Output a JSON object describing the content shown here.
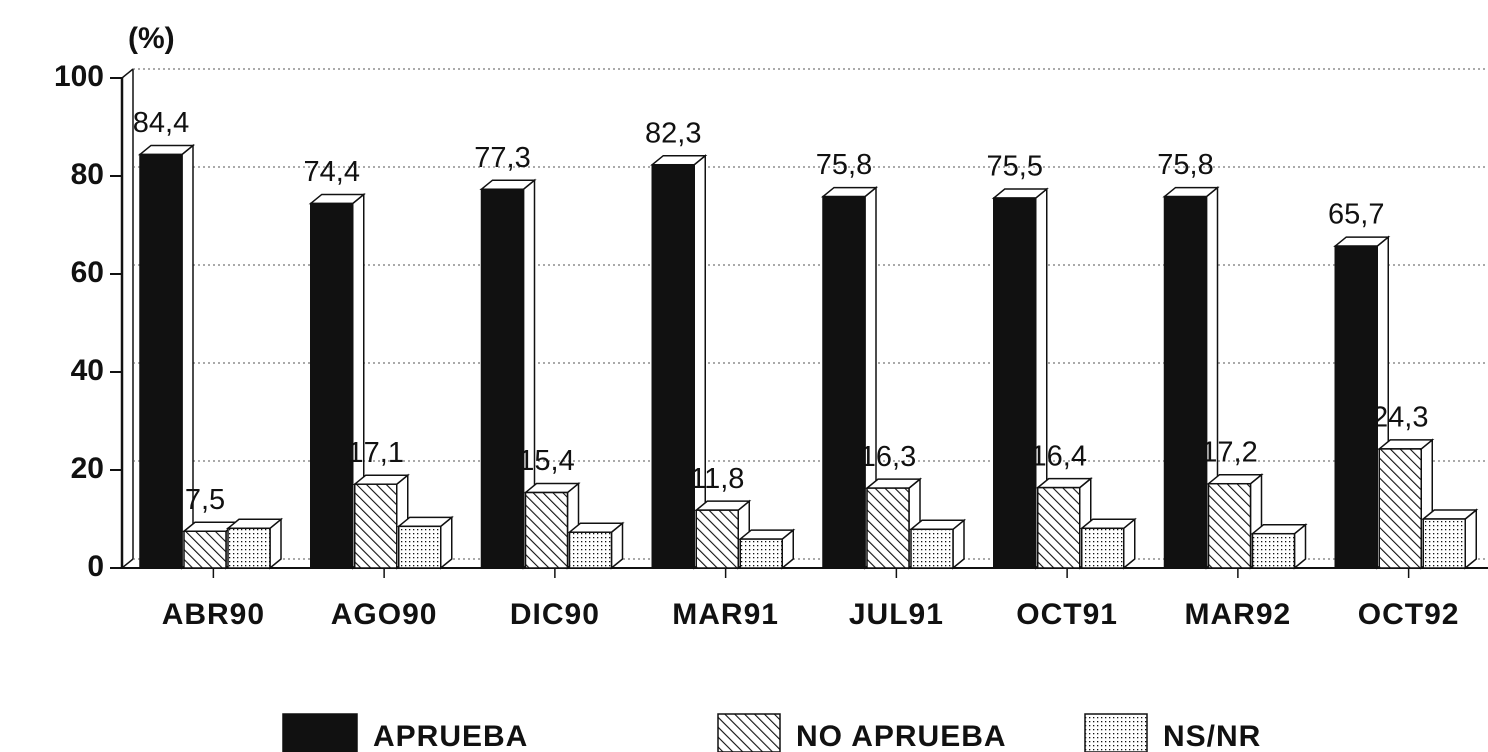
{
  "chart_data": {
    "type": "bar3d",
    "y_label": "(%)",
    "categories": [
      "ABR90",
      "AGO90",
      "DIC90",
      "MAR91",
      "JUL91",
      "OCT91",
      "MAR92",
      "OCT92"
    ],
    "series": [
      {
        "name": "APRUEBA",
        "color": "#111111",
        "fill": "solid",
        "values": [
          84.4,
          74.4,
          77.3,
          82.3,
          75.8,
          75.5,
          75.8,
          65.7
        ],
        "value_labels": [
          "84,4",
          "74,4",
          "77,3",
          "82,3",
          "75,8",
          "75,5",
          "75,8",
          "65,7"
        ]
      },
      {
        "name": "NO APRUEBA",
        "color": "#111111",
        "fill": "hatch",
        "values": [
          7.5,
          17.1,
          15.4,
          11.8,
          16.3,
          16.4,
          17.2,
          24.3
        ],
        "value_labels": [
          "7,5",
          "17,1",
          "15,4",
          "11,8",
          "16,3",
          "16,4",
          "17,2",
          "24,3"
        ]
      },
      {
        "name": "NS/NR",
        "color": "#111111",
        "fill": "dots",
        "values": [
          8.1,
          8.5,
          7.3,
          5.9,
          7.9,
          8.1,
          7.0,
          10.0
        ]
      }
    ],
    "ylim": [
      0,
      100
    ],
    "yticks": [
      0,
      20,
      40,
      60,
      80,
      100
    ],
    "grid": true,
    "legend": "bottom"
  }
}
